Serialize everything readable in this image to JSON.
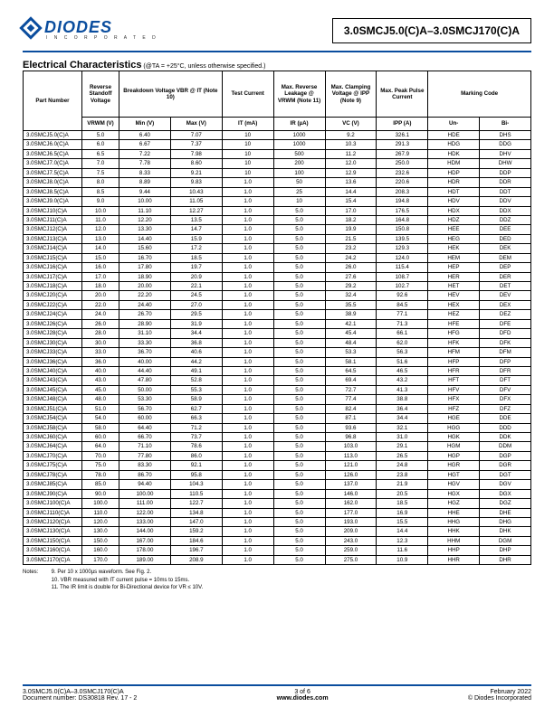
{
  "header": {
    "logo_text": "DIODES",
    "logo_sub": "I N C O R P O R A T E D",
    "part_title": "3.0SMCJ5.0(C)A–3.0SMCJ170(C)A"
  },
  "section": {
    "title": "Electrical Characteristics",
    "cond": " (@TA = +25°C, unless otherwise specified.)"
  },
  "columns": {
    "h1": [
      "Part Number",
      "Reverse Standoff Voltage",
      "Breakdown Voltage VBR @ IT (Note 10)",
      "Test Current",
      "Max. Reverse Leakage @ VRWM (Note 11)",
      "Max. Clamping Voltage @ IPP (Note 9)",
      "Max. Peak Pulse Current",
      "Marking Code"
    ],
    "h2": [
      "VRWM (V)",
      "Min (V)",
      "Max (V)",
      "IT (mA)",
      "IR (µA)",
      "VC (V)",
      "IPP (A)",
      "Un-",
      "Bi-"
    ]
  },
  "rows": [
    [
      "3.0SMCJ5.0(C)A",
      "5.0",
      "6.40",
      "7.07",
      "10",
      "1000",
      "9.2",
      "326.1",
      "HDE",
      "DHS"
    ],
    [
      "3.0SMCJ6.0(C)A",
      "6.0",
      "6.67",
      "7.37",
      "10",
      "1000",
      "10.3",
      "291.3",
      "HDG",
      "DDG"
    ],
    [
      "3.0SMCJ6.5(C)A",
      "6.5",
      "7.22",
      "7.98",
      "10",
      "500",
      "11.2",
      "267.9",
      "HDK",
      "DHV"
    ],
    [
      "3.0SMCJ7.0(C)A",
      "7.0",
      "7.78",
      "8.60",
      "10",
      "200",
      "12.0",
      "250.0",
      "HDM",
      "DHW"
    ],
    [
      "3.0SMCJ7.5(C)A",
      "7.5",
      "8.33",
      "9.21",
      "10",
      "100",
      "12.9",
      "232.6",
      "HDP",
      "DDP"
    ],
    [
      "3.0SMCJ8.0(C)A",
      "8.0",
      "8.89",
      "9.83",
      "1.0",
      "50",
      "13.6",
      "220.6",
      "HDR",
      "DDR"
    ],
    [
      "3.0SMCJ8.5(C)A",
      "8.5",
      "9.44",
      "10.43",
      "1.0",
      "25",
      "14.4",
      "208.3",
      "HDT",
      "DDT"
    ],
    [
      "3.0SMCJ9.0(C)A",
      "9.0",
      "10.00",
      "11.05",
      "1.0",
      "10",
      "15.4",
      "194.8",
      "HDV",
      "DDV"
    ],
    [
      "3.0SMCJ10(C)A",
      "10.0",
      "11.10",
      "12.27",
      "1.0",
      "5.0",
      "17.0",
      "176.5",
      "HDX",
      "DDX"
    ],
    [
      "3.0SMCJ11(C)A",
      "11.0",
      "12.20",
      "13.5",
      "1.0",
      "5.0",
      "18.2",
      "164.8",
      "HDZ",
      "DDZ"
    ],
    [
      "3.0SMCJ12(C)A",
      "12.0",
      "13.30",
      "14.7",
      "1.0",
      "5.0",
      "19.9",
      "150.8",
      "HEE",
      "DEE"
    ],
    [
      "3.0SMCJ13(C)A",
      "13.0",
      "14.40",
      "15.9",
      "1.0",
      "5.0",
      "21.5",
      "139.5",
      "HEG",
      "DED"
    ],
    [
      "3.0SMCJ14(C)A",
      "14.0",
      "15.60",
      "17.2",
      "1.0",
      "5.0",
      "23.2",
      "129.3",
      "HEK",
      "DEK"
    ],
    [
      "3.0SMCJ15(C)A",
      "15.0",
      "16.70",
      "18.5",
      "1.0",
      "5.0",
      "24.2",
      "124.0",
      "HEM",
      "DEM"
    ],
    [
      "3.0SMCJ16(C)A",
      "16.0",
      "17.80",
      "19.7",
      "1.0",
      "5.0",
      "26.0",
      "115.4",
      "HEP",
      "DEP"
    ],
    [
      "3.0SMCJ17(C)A",
      "17.0",
      "18.90",
      "20.9",
      "1.0",
      "5.0",
      "27.6",
      "108.7",
      "HER",
      "DER"
    ],
    [
      "3.0SMCJ18(C)A",
      "18.0",
      "20.00",
      "22.1",
      "1.0",
      "5.0",
      "29.2",
      "102.7",
      "HET",
      "DET"
    ],
    [
      "3.0SMCJ20(C)A",
      "20.0",
      "22.20",
      "24.5",
      "1.0",
      "5.0",
      "32.4",
      "92.6",
      "HEV",
      "DEV"
    ],
    [
      "3.0SMCJ22(C)A",
      "22.0",
      "24.40",
      "27.0",
      "1.0",
      "5.0",
      "35.5",
      "84.5",
      "HEX",
      "DEX"
    ],
    [
      "3.0SMCJ24(C)A",
      "24.0",
      "26.70",
      "29.5",
      "1.0",
      "5.0",
      "38.9",
      "77.1",
      "HEZ",
      "DEZ"
    ],
    [
      "3.0SMCJ26(C)A",
      "26.0",
      "28.90",
      "31.9",
      "1.0",
      "5.0",
      "42.1",
      "71.3",
      "HFE",
      "DFE"
    ],
    [
      "3.0SMCJ28(C)A",
      "28.0",
      "31.10",
      "34.4",
      "1.0",
      "5.0",
      "45.4",
      "66.1",
      "HFG",
      "DFD"
    ],
    [
      "3.0SMCJ30(C)A",
      "30.0",
      "33.30",
      "36.8",
      "1.0",
      "5.0",
      "48.4",
      "62.0",
      "HFK",
      "DFK"
    ],
    [
      "3.0SMCJ33(C)A",
      "33.0",
      "36.70",
      "40.6",
      "1.0",
      "5.0",
      "53.3",
      "56.3",
      "HFM",
      "DFM"
    ],
    [
      "3.0SMCJ36(C)A",
      "36.0",
      "40.00",
      "44.2",
      "1.0",
      "5.0",
      "58.1",
      "51.6",
      "HFP",
      "DFP"
    ],
    [
      "3.0SMCJ40(C)A",
      "40.0",
      "44.40",
      "49.1",
      "1.0",
      "5.0",
      "64.5",
      "46.5",
      "HFR",
      "DFR"
    ],
    [
      "3.0SMCJ43(C)A",
      "43.0",
      "47.80",
      "52.8",
      "1.0",
      "5.0",
      "69.4",
      "43.2",
      "HFT",
      "DFT"
    ],
    [
      "3.0SMCJ45(C)A",
      "45.0",
      "50.00",
      "55.3",
      "1.0",
      "5.0",
      "72.7",
      "41.3",
      "HFV",
      "DFV"
    ],
    [
      "3.0SMCJ48(C)A",
      "48.0",
      "53.30",
      "58.9",
      "1.0",
      "5.0",
      "77.4",
      "38.8",
      "HFX",
      "DFX"
    ],
    [
      "3.0SMCJ51(C)A",
      "51.0",
      "56.70",
      "62.7",
      "1.0",
      "5.0",
      "82.4",
      "36.4",
      "HFZ",
      "DFZ"
    ],
    [
      "3.0SMCJ54(C)A",
      "54.0",
      "60.00",
      "66.3",
      "1.0",
      "5.0",
      "87.1",
      "34.4",
      "HGE",
      "DDE"
    ],
    [
      "3.0SMCJ58(C)A",
      "58.0",
      "64.40",
      "71.2",
      "1.0",
      "5.0",
      "93.6",
      "32.1",
      "HGG",
      "DDD"
    ],
    [
      "3.0SMCJ60(C)A",
      "60.0",
      "66.70",
      "73.7",
      "1.0",
      "5.0",
      "96.8",
      "31.0",
      "HGK",
      "DDK"
    ],
    [
      "3.0SMCJ64(C)A",
      "64.0",
      "71.10",
      "78.6",
      "1.0",
      "5.0",
      "103.0",
      "29.1",
      "HGM",
      "DDM"
    ],
    [
      "3.0SMCJ70(C)A",
      "70.0",
      "77.80",
      "86.0",
      "1.0",
      "5.0",
      "113.0",
      "26.5",
      "HGP",
      "DGP"
    ],
    [
      "3.0SMCJ75(C)A",
      "75.0",
      "83.30",
      "92.1",
      "1.0",
      "5.0",
      "121.0",
      "24.8",
      "HGR",
      "DGR"
    ],
    [
      "3.0SMCJ78(C)A",
      "78.0",
      "86.70",
      "95.8",
      "1.0",
      "5.0",
      "126.0",
      "23.8",
      "HGT",
      "DGT"
    ],
    [
      "3.0SMCJ85(C)A",
      "85.0",
      "94.40",
      "104.3",
      "1.0",
      "5.0",
      "137.0",
      "21.9",
      "HGV",
      "DGV"
    ],
    [
      "3.0SMCJ90(C)A",
      "90.0",
      "100.00",
      "110.5",
      "1.0",
      "5.0",
      "146.0",
      "20.5",
      "HGX",
      "DGX"
    ],
    [
      "3.0SMCJ100(C)A",
      "100.0",
      "111.00",
      "122.7",
      "1.0",
      "5.0",
      "162.0",
      "18.5",
      "HGZ",
      "DGZ"
    ],
    [
      "3.0SMCJ110(C)A",
      "110.0",
      "122.00",
      "134.8",
      "1.0",
      "5.0",
      "177.0",
      "16.9",
      "HHE",
      "DHE"
    ],
    [
      "3.0SMCJ120(C)A",
      "120.0",
      "133.00",
      "147.0",
      "1.0",
      "5.0",
      "193.0",
      "15.5",
      "HHG",
      "DHG"
    ],
    [
      "3.0SMCJ130(C)A",
      "130.0",
      "144.00",
      "159.2",
      "1.0",
      "5.0",
      "209.0",
      "14.4",
      "HHK",
      "DHK"
    ],
    [
      "3.0SMCJ150(C)A",
      "150.0",
      "167.00",
      "184.6",
      "1.0",
      "5.0",
      "243.0",
      "12.3",
      "HHM",
      "DGM"
    ],
    [
      "3.0SMCJ160(C)A",
      "160.0",
      "178.00",
      "196.7",
      "1.0",
      "5.0",
      "259.0",
      "11.6",
      "HHP",
      "DHP"
    ],
    [
      "3.0SMCJ170(C)A",
      "170.0",
      "189.00",
      "208.9",
      "1.0",
      "5.0",
      "275.0",
      "10.9",
      "HHR",
      "DHR"
    ]
  ],
  "notes": {
    "label": "Notes:",
    "lines": [
      "9. Per 10 x 1000µs waveform. See Fig. 2.",
      "10. VBR measured with IT current pulse = 10ms to 15ms.",
      "11. The IR limit is double for Bi-Directional device for VR ≤ 10V."
    ]
  },
  "footer": {
    "left1": "3.0SMCJ5.0(C)A–3.0SMCJ170(C)A",
    "left2": "Document number: DS30818 Rev. 17 - 2",
    "center1": "3 of 6",
    "center2": "www.diodes.com",
    "right1": "February 2022",
    "right2": "© Diodes Incorporated"
  }
}
